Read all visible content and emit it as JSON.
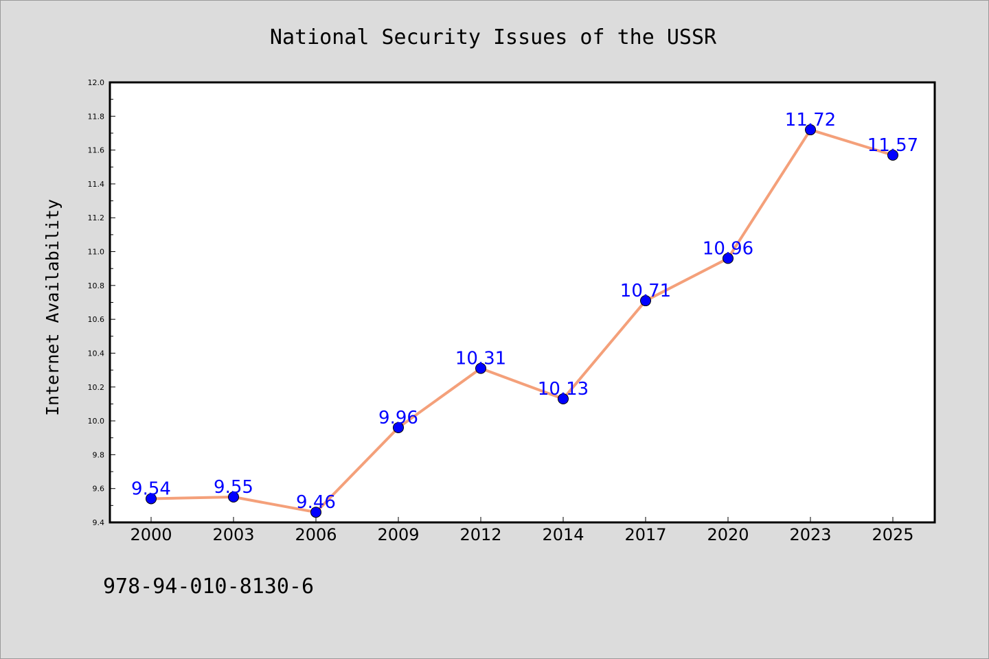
{
  "chart_data": {
    "type": "line",
    "title": "National Security Issues of the USSR",
    "xlabel": "",
    "ylabel": "Internet Availability",
    "categories": [
      "2000",
      "2003",
      "2006",
      "2009",
      "2012",
      "2014",
      "2017",
      "2020",
      "2023",
      "2025"
    ],
    "series": [
      {
        "values": [
          9.54,
          9.55,
          9.46,
          9.96,
          10.31,
          10.13,
          10.71,
          10.96,
          11.72,
          11.57
        ]
      }
    ],
    "data_labels": [
      "9.54",
      "9.55",
      "9.46",
      "9.96",
      "10.31",
      "10.13",
      "10.71",
      "10.96",
      "11.72",
      "11.57"
    ],
    "ylim": [
      9.4,
      12.0
    ],
    "yticks": [
      "9.4",
      "9.6",
      "9.8",
      "10.0",
      "10.2",
      "10.4",
      "10.6",
      "10.8",
      "11.0",
      "11.2",
      "11.4",
      "11.6",
      "11.8",
      "12.0"
    ],
    "grid": false,
    "line_color": "#f4a07a",
    "marker_color": "#0000ff",
    "label_color": "#0000ff"
  },
  "footer": {
    "isbn": "978-94-010-8130-6"
  }
}
